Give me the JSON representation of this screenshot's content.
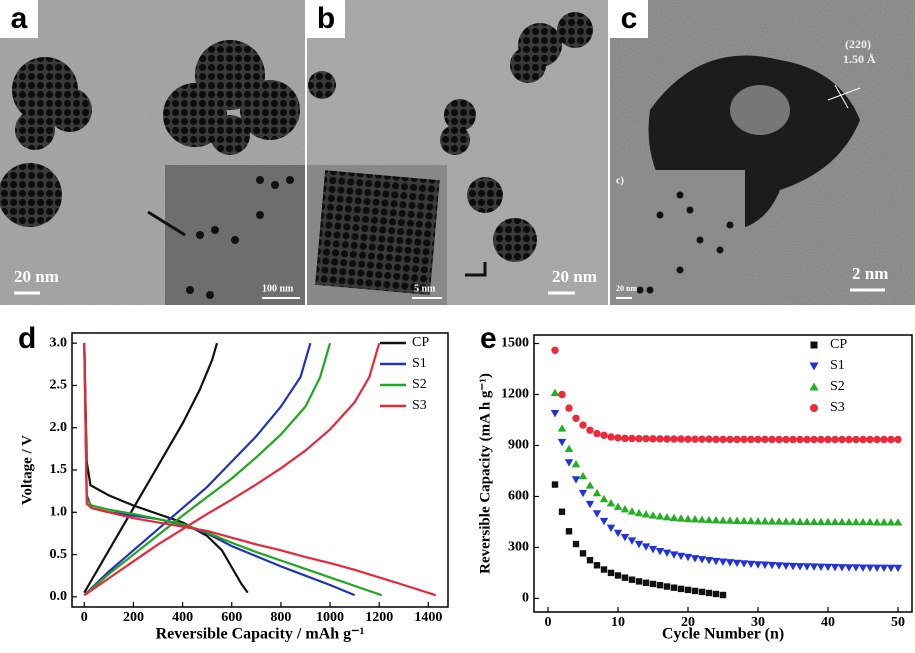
{
  "panels": [
    {
      "label": "a",
      "scale": "20 nm",
      "inset_scale": "100 nm"
    },
    {
      "label": "b",
      "scale": "20 nm",
      "inset_scale": "5 nm"
    },
    {
      "label": "c",
      "scale": "2 nm",
      "inset_scale": "20 nm",
      "inset_label": "c)",
      "lattice_plane": "(220)",
      "spacing": "1.50 Å"
    }
  ],
  "chart_data": [
    {
      "type": "line",
      "panel_label": "d",
      "xlabel": "Reversible Capacity / mAh g⁻¹",
      "ylabel": "Voltage / V",
      "xlim": [
        -50,
        1480
      ],
      "xticks": [
        0,
        200,
        400,
        600,
        800,
        1000,
        1200,
        1400
      ],
      "ylim": [
        -0.12,
        3.12
      ],
      "yticks": [
        {
          "value": 0,
          "label": "0.0"
        },
        {
          "value": 0.5,
          "label": "0.5"
        },
        {
          "value": 1,
          "label": "1.0"
        },
        {
          "value": 1.5,
          "label": "1.5"
        },
        {
          "value": 2,
          "label": "2.0"
        },
        {
          "value": 2.5,
          "label": "2.5"
        },
        {
          "value": 3,
          "label": "3.0"
        }
      ],
      "legend": "upper right",
      "series": [
        {
          "name": "CP",
          "color": "#111111",
          "x": [
            0,
            10,
            25,
            100,
            200,
            300,
            400,
            500,
            560,
            600,
            640,
            665,
            null,
            0,
            100,
            200,
            300,
            400,
            470,
            520,
            540
          ],
          "values": [
            3.0,
            1.6,
            1.32,
            1.2,
            1.08,
            0.98,
            0.88,
            0.72,
            0.55,
            0.35,
            0.15,
            0.05,
            null,
            0.05,
            0.55,
            1.05,
            1.55,
            2.05,
            2.45,
            2.8,
            3.0
          ]
        },
        {
          "name": "S1",
          "color": "#2233bb",
          "x": [
            0,
            10,
            30,
            100,
            200,
            300,
            400,
            500,
            600,
            700,
            800,
            900,
            1000,
            1100,
            null,
            0,
            100,
            200,
            300,
            400,
            500,
            600,
            700,
            800,
            880,
            920
          ],
          "values": [
            3.0,
            1.2,
            1.05,
            1.0,
            0.96,
            0.92,
            0.85,
            0.75,
            0.6,
            0.48,
            0.36,
            0.25,
            0.14,
            0.02,
            null,
            0.02,
            0.3,
            0.55,
            0.8,
            1.05,
            1.3,
            1.6,
            1.9,
            2.25,
            2.6,
            3.0
          ]
        },
        {
          "name": "S2",
          "color": "#1ea81e",
          "x": [
            0,
            10,
            30,
            100,
            200,
            300,
            400,
            500,
            600,
            700,
            800,
            900,
            1000,
            1100,
            1210,
            null,
            0,
            100,
            200,
            300,
            400,
            500,
            600,
            700,
            800,
            900,
            960,
            1000
          ],
          "values": [
            3.0,
            1.15,
            1.08,
            1.03,
            0.98,
            0.92,
            0.86,
            0.76,
            0.64,
            0.53,
            0.43,
            0.33,
            0.23,
            0.13,
            0.02,
            null,
            0.02,
            0.27,
            0.5,
            0.73,
            0.96,
            1.18,
            1.4,
            1.65,
            1.92,
            2.25,
            2.6,
            3.0
          ]
        },
        {
          "name": "S3",
          "color": "#e8283a",
          "x": [
            0,
            10,
            30,
            100,
            200,
            300,
            400,
            500,
            600,
            700,
            800,
            900,
            1000,
            1100,
            1200,
            1300,
            1430,
            null,
            0,
            100,
            200,
            300,
            400,
            500,
            600,
            700,
            800,
            900,
            1000,
            1100,
            1160,
            1200
          ],
          "values": [
            3.0,
            1.1,
            1.05,
            1.0,
            0.93,
            0.88,
            0.83,
            0.78,
            0.7,
            0.62,
            0.55,
            0.47,
            0.4,
            0.32,
            0.23,
            0.14,
            0.02,
            null,
            0.02,
            0.22,
            0.42,
            0.62,
            0.8,
            0.98,
            1.15,
            1.33,
            1.52,
            1.73,
            1.98,
            2.3,
            2.6,
            3.0
          ]
        }
      ]
    },
    {
      "type": "scatter",
      "panel_label": "e",
      "xlabel": "Cycle Number (n)",
      "ylabel": "Reversible Capacity (mA h g⁻¹)",
      "xlim": [
        -2,
        52
      ],
      "xticks": [
        0,
        10,
        20,
        30,
        40,
        50
      ],
      "ylim": [
        -80,
        1550
      ],
      "yticks": [
        0,
        300,
        600,
        900,
        1200,
        1500
      ],
      "legend": "upper right",
      "series": [
        {
          "name": "CP",
          "color": "#111111",
          "marker": "square",
          "x": [
            1,
            2,
            3,
            4,
            5,
            6,
            7,
            8,
            9,
            10,
            11,
            12,
            13,
            14,
            15,
            16,
            17,
            18,
            19,
            20,
            21,
            22,
            23,
            24,
            25
          ],
          "values": [
            670,
            510,
            395,
            320,
            265,
            225,
            195,
            170,
            150,
            135,
            122,
            110,
            100,
            92,
            85,
            78,
            70,
            63,
            56,
            50,
            44,
            38,
            32,
            26,
            20
          ]
        },
        {
          "name": "S1",
          "color": "#2233dd",
          "marker": "triangle-down",
          "x": [
            1,
            2,
            3,
            4,
            5,
            6,
            7,
            8,
            9,
            10,
            11,
            12,
            13,
            14,
            15,
            16,
            17,
            18,
            19,
            20,
            21,
            22,
            23,
            24,
            25,
            26,
            27,
            28,
            29,
            30,
            31,
            32,
            33,
            34,
            35,
            36,
            37,
            38,
            39,
            40,
            41,
            42,
            43,
            44,
            45,
            46,
            47,
            48,
            49,
            50
          ],
          "values": [
            1090,
            920,
            800,
            700,
            620,
            555,
            500,
            455,
            415,
            385,
            360,
            340,
            320,
            305,
            290,
            278,
            268,
            258,
            250,
            243,
            236,
            230,
            225,
            220,
            216,
            212,
            209,
            206,
            203,
            200,
            198,
            196,
            194,
            192,
            190,
            189,
            188,
            187,
            186,
            185,
            184,
            183,
            182,
            182,
            181,
            181,
            180,
            180,
            179,
            179
          ]
        },
        {
          "name": "S2",
          "color": "#22b022",
          "marker": "triangle-up",
          "x": [
            1,
            2,
            3,
            4,
            5,
            6,
            7,
            8,
            9,
            10,
            11,
            12,
            13,
            14,
            15,
            16,
            17,
            18,
            19,
            20,
            21,
            22,
            23,
            24,
            25,
            26,
            27,
            28,
            29,
            30,
            31,
            32,
            33,
            34,
            35,
            36,
            37,
            38,
            39,
            40,
            41,
            42,
            43,
            44,
            45,
            46,
            47,
            48,
            49,
            50
          ],
          "values": [
            1210,
            1000,
            880,
            790,
            720,
            665,
            620,
            585,
            560,
            540,
            525,
            512,
            502,
            495,
            488,
            483,
            478,
            474,
            471,
            468,
            466,
            464,
            462,
            460,
            459,
            458,
            457,
            456,
            455,
            454,
            454,
            453,
            453,
            452,
            452,
            451,
            451,
            451,
            450,
            450,
            450,
            450,
            449,
            449,
            449,
            449,
            448,
            448,
            448,
            448
          ]
        },
        {
          "name": "S3",
          "color": "#ee2a3a",
          "marker": "circle",
          "x": [
            1,
            2,
            3,
            4,
            5,
            6,
            7,
            8,
            9,
            10,
            11,
            12,
            13,
            14,
            15,
            16,
            17,
            18,
            19,
            20,
            21,
            22,
            23,
            24,
            25,
            26,
            27,
            28,
            29,
            30,
            31,
            32,
            33,
            34,
            35,
            36,
            37,
            38,
            39,
            40,
            41,
            42,
            43,
            44,
            45,
            46,
            47,
            48,
            49,
            50
          ],
          "values": [
            1460,
            1200,
            1120,
            1060,
            1020,
            990,
            970,
            960,
            950,
            945,
            942,
            941,
            940,
            940,
            939,
            939,
            938,
            938,
            938,
            937,
            937,
            937,
            937,
            936,
            936,
            936,
            936,
            936,
            936,
            936,
            936,
            936,
            935,
            935,
            935,
            935,
            935,
            935,
            935,
            935,
            935,
            935,
            935,
            935,
            935,
            935,
            935,
            935,
            935,
            935
          ]
        }
      ]
    }
  ]
}
